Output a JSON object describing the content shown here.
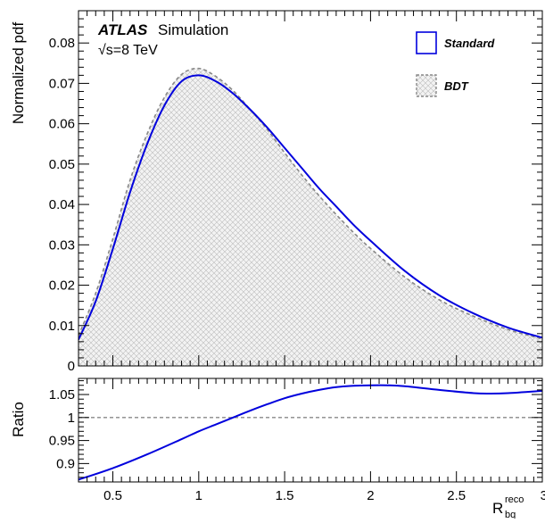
{
  "labels": {
    "atlas": "ATLAS",
    "simulation": "Simulation",
    "energy": "√s=8 TeV"
  },
  "chart_data": [
    {
      "type": "area",
      "panel": "main",
      "ylabel": "Normalized pdf",
      "xlabel": "",
      "xlim": [
        0.3,
        3.0
      ],
      "ylim": [
        0,
        0.088
      ],
      "yticks": [
        0,
        0.01,
        0.02,
        0.03,
        0.04,
        0.05,
        0.06,
        0.07,
        0.08
      ],
      "ytick_labels": [
        "0",
        "0.01",
        "0.02",
        "0.03",
        "0.04",
        "0.05",
        "0.06",
        "0.07",
        "0.08"
      ],
      "xticks": [
        0.5,
        1.0,
        1.5,
        2.0,
        2.5,
        3.0
      ],
      "legend_position": "top-right",
      "series": [
        {
          "name": "Standard",
          "color": "#0000dd",
          "style": "line",
          "x": [
            0.3,
            0.4,
            0.5,
            0.6,
            0.7,
            0.8,
            0.9,
            1.0,
            1.1,
            1.2,
            1.3,
            1.4,
            1.5,
            1.6,
            1.7,
            1.8,
            1.9,
            2.0,
            2.2,
            2.4,
            2.6,
            2.8,
            3.0
          ],
          "values": [
            0.0065,
            0.016,
            0.029,
            0.043,
            0.055,
            0.0645,
            0.0705,
            0.072,
            0.0705,
            0.0675,
            0.0635,
            0.059,
            0.054,
            0.049,
            0.044,
            0.0395,
            0.035,
            0.031,
            0.0235,
            0.0175,
            0.013,
            0.0095,
            0.007
          ]
        },
        {
          "name": "BDT",
          "color": "#888888",
          "style": "dashed-hatched",
          "x": [
            0.3,
            0.4,
            0.5,
            0.6,
            0.7,
            0.8,
            0.9,
            1.0,
            1.1,
            1.2,
            1.3,
            1.4,
            1.5,
            1.6,
            1.7,
            1.8,
            1.9,
            2.0,
            2.2,
            2.4,
            2.6,
            2.8,
            3.0
          ],
          "values": [
            0.0075,
            0.018,
            0.0315,
            0.046,
            0.0575,
            0.0665,
            0.0722,
            0.0737,
            0.0717,
            0.0682,
            0.0635,
            0.0585,
            0.0528,
            0.0473,
            0.0422,
            0.0375,
            0.0331,
            0.0291,
            0.022,
            0.0164,
            0.0123,
            0.009,
            0.0067
          ]
        }
      ]
    },
    {
      "type": "line",
      "panel": "ratio",
      "ylabel": "Ratio",
      "xlabel": "R_bq^reco",
      "xlim": [
        0.3,
        3.0
      ],
      "ylim": [
        0.86,
        1.085
      ],
      "yticks": [
        0.9,
        0.95,
        1.0,
        1.05
      ],
      "ytick_labels": [
        "0.9",
        "0.95",
        "1",
        "1.05"
      ],
      "xticks": [
        0.5,
        1.0,
        1.5,
        2.0,
        2.5,
        3.0
      ],
      "xtick_labels": [
        "0.5",
        "1",
        "1.5",
        "2",
        "2.5",
        "3"
      ],
      "reference_line": 1.0,
      "series": [
        {
          "color": "#0000dd",
          "x": [
            0.3,
            0.5,
            0.7,
            0.9,
            1.0,
            1.1,
            1.2,
            1.3,
            1.4,
            1.5,
            1.6,
            1.7,
            1.8,
            1.9,
            2.0,
            2.1,
            2.2,
            2.4,
            2.6,
            2.7,
            2.8,
            3.0
          ],
          "values": [
            0.865,
            0.89,
            0.92,
            0.953,
            0.97,
            0.985,
            1.0,
            1.015,
            1.029,
            1.042,
            1.052,
            1.06,
            1.066,
            1.069,
            1.07,
            1.07,
            1.068,
            1.06,
            1.053,
            1.052,
            1.053,
            1.058
          ]
        }
      ]
    }
  ],
  "xlabel_parts": {
    "base": "R",
    "sup": "reco",
    "sub": "bq"
  }
}
